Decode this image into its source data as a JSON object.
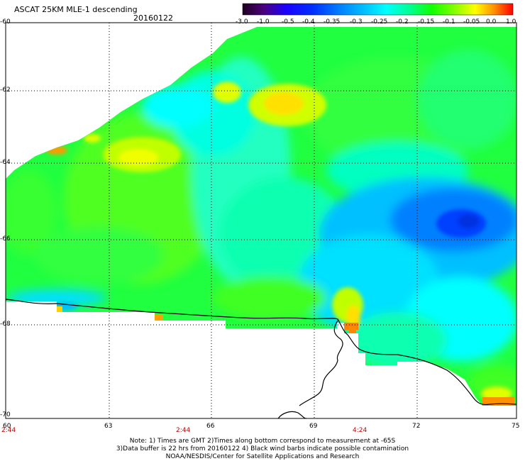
{
  "map": {
    "title": "ASCAT 25KM MLE-1 descending",
    "date": "20160122",
    "colorbar": {
      "tick_labels": [
        "-3.0",
        "-1.0",
        "-0.5",
        "-0.4",
        "-0.35",
        "-0.3",
        "-0.25",
        "-0.2",
        "-0.15",
        "-0.1",
        "-0.05",
        "0.0",
        "1.0"
      ],
      "colors": [
        "#200020",
        "#4a0080",
        "#1a00ff",
        "#0030ff",
        "#0080ff",
        "#00c0ff",
        "#00ffff",
        "#00ff90",
        "#10ff00",
        "#80ff00",
        "#ffff00",
        "#ff9000",
        "#ff0000"
      ]
    },
    "lat_labels": [
      "-60",
      "-62",
      "-64",
      "-66",
      "-68",
      "-70"
    ],
    "lon_labels": [
      "60",
      "63",
      "66",
      "69",
      "72",
      "75"
    ],
    "time_labels": [
      "2:44",
      "2:44",
      "4:24"
    ],
    "notes": [
      "Note: 1) Times are GMT 2)Times along bottom correspond to measurement at -65S",
      "3)Data buffer is 22 hrs from 20160122 4) Black wind barbs indicate possible contamination",
      "NOAA/NESDIS/Center for Satellite Applications and Research"
    ]
  }
}
